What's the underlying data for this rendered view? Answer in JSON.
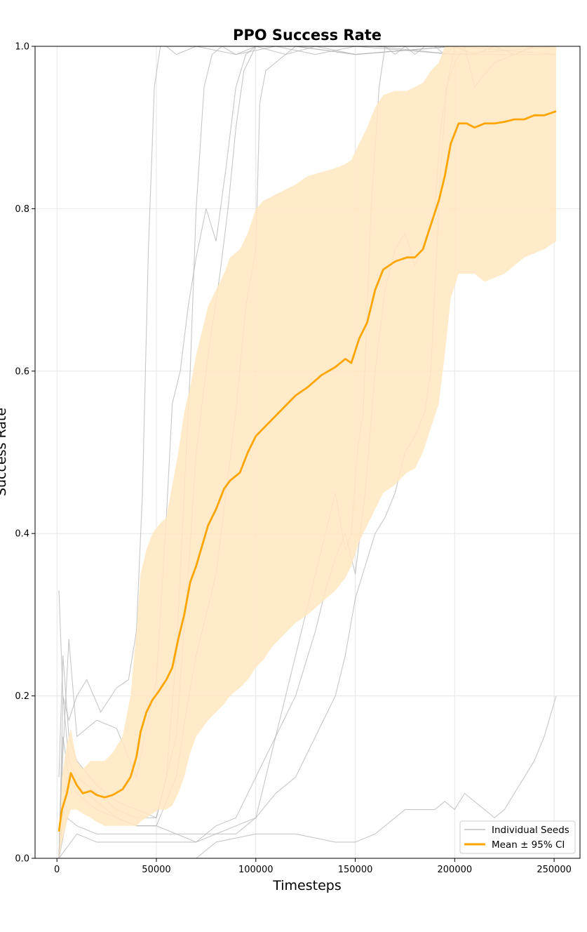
{
  "chart_data": {
    "type": "line",
    "title": "PPO Success Rate",
    "xlabel": "Timesteps",
    "ylabel": "Success Rate",
    "xlim": [
      -11000,
      263000
    ],
    "ylim": [
      0,
      1.0
    ],
    "xticks": [
      0,
      50000,
      100000,
      150000,
      200000,
      250000
    ],
    "yticks": [
      0.0,
      0.2,
      0.4,
      0.6,
      0.8,
      1.0
    ],
    "xtick_labels": [
      "0",
      "50000",
      "100000",
      "150000",
      "200000",
      "250000"
    ],
    "ytick_labels": [
      "0.0",
      "0.2",
      "0.4",
      "0.6",
      "0.8",
      "1.0"
    ],
    "grid": true,
    "legend_position": "lower-right",
    "colors": {
      "mean": "#ffa500",
      "band": "#ffe8bf",
      "seeds": "#b4b4b4"
    },
    "legend": [
      {
        "label": "Individual Seeds",
        "style": "seed"
      },
      {
        "label": "Mean ± 95% CI",
        "style": "mean"
      }
    ],
    "series": [
      {
        "name": "Mean ± 95% CI",
        "role": "mean",
        "x": [
          1000,
          2500,
          5000,
          7000,
          10000,
          13000,
          17000,
          20000,
          24000,
          28000,
          33000,
          37000,
          40000,
          42000,
          45000,
          48000,
          51000,
          55000,
          58000,
          61000,
          64000,
          67000,
          70000,
          73000,
          76000,
          80000,
          84000,
          87000,
          92000,
          96000,
          100000,
          104000,
          108000,
          112000,
          116000,
          120000,
          126000,
          133000,
          140000,
          145000,
          148000,
          152000,
          156000,
          160000,
          164000,
          170000,
          176000,
          180000,
          184000,
          188000,
          192000,
          195000,
          198000,
          202000,
          206000,
          210000,
          215000,
          220000,
          225000,
          230000,
          235000,
          240000,
          245000,
          251000
        ],
        "y": [
          0.033,
          0.06,
          0.08,
          0.105,
          0.09,
          0.08,
          0.083,
          0.078,
          0.075,
          0.078,
          0.085,
          0.1,
          0.125,
          0.155,
          0.18,
          0.195,
          0.205,
          0.22,
          0.235,
          0.27,
          0.3,
          0.34,
          0.36,
          0.385,
          0.41,
          0.43,
          0.455,
          0.465,
          0.475,
          0.5,
          0.52,
          0.53,
          0.54,
          0.55,
          0.56,
          0.57,
          0.58,
          0.595,
          0.605,
          0.615,
          0.61,
          0.64,
          0.66,
          0.7,
          0.725,
          0.735,
          0.74,
          0.74,
          0.75,
          0.78,
          0.81,
          0.84,
          0.88,
          0.905,
          0.905,
          0.9,
          0.905,
          0.905,
          0.907,
          0.91,
          0.91,
          0.915,
          0.915,
          0.92
        ],
        "ci_lower": [
          0.0,
          0.02,
          0.045,
          0.06,
          0.06,
          0.055,
          0.05,
          0.045,
          0.04,
          0.04,
          0.04,
          0.04,
          0.04,
          0.045,
          0.05,
          0.055,
          0.06,
          0.06,
          0.065,
          0.08,
          0.1,
          0.13,
          0.15,
          0.16,
          0.17,
          0.18,
          0.19,
          0.2,
          0.21,
          0.22,
          0.235,
          0.245,
          0.26,
          0.27,
          0.28,
          0.29,
          0.3,
          0.315,
          0.33,
          0.345,
          0.36,
          0.39,
          0.41,
          0.43,
          0.45,
          0.46,
          0.475,
          0.48,
          0.5,
          0.53,
          0.56,
          0.62,
          0.69,
          0.72,
          0.72,
          0.72,
          0.71,
          0.715,
          0.72,
          0.73,
          0.74,
          0.745,
          0.75,
          0.76
        ],
        "ci_upper": [
          0.0,
          0.1,
          0.14,
          0.16,
          0.12,
          0.11,
          0.12,
          0.12,
          0.12,
          0.13,
          0.15,
          0.2,
          0.28,
          0.35,
          0.38,
          0.4,
          0.41,
          0.42,
          0.46,
          0.5,
          0.55,
          0.58,
          0.62,
          0.65,
          0.68,
          0.7,
          0.72,
          0.74,
          0.75,
          0.77,
          0.8,
          0.81,
          0.815,
          0.82,
          0.825,
          0.83,
          0.84,
          0.845,
          0.85,
          0.855,
          0.86,
          0.88,
          0.9,
          0.925,
          0.94,
          0.945,
          0.945,
          0.95,
          0.955,
          0.97,
          0.98,
          1.0,
          1.0,
          1.0,
          1.0,
          1.0,
          1.0,
          1.0,
          1.0,
          1.0,
          1.0,
          1.0,
          1.0,
          1.0
        ]
      },
      {
        "role": "seed",
        "x": [
          1000,
          3000,
          6000,
          10000,
          15000,
          22000,
          30000,
          36000,
          40000,
          43000,
          46000,
          49000,
          52000,
          55000,
          60000,
          70000,
          90000,
          110000,
          130000,
          150000,
          200000,
          251000
        ],
        "y": [
          0.33,
          0.2,
          0.17,
          0.2,
          0.22,
          0.18,
          0.21,
          0.22,
          0.28,
          0.45,
          0.75,
          0.95,
          1.0,
          1.0,
          0.99,
          1.0,
          0.99,
          1.0,
          0.99,
          1.0,
          0.99,
          1.0
        ]
      },
      {
        "role": "seed",
        "x": [
          1000,
          3000,
          6000,
          10000,
          20000,
          30000,
          40000,
          50000,
          55000,
          60000,
          63000,
          67000,
          70000,
          74000,
          78000,
          83000,
          90000,
          100000,
          130000,
          160000,
          200000,
          251000
        ],
        "y": [
          0.1,
          0.25,
          0.15,
          0.12,
          0.09,
          0.07,
          0.06,
          0.05,
          0.1,
          0.25,
          0.4,
          0.6,
          0.8,
          0.95,
          0.99,
          1.0,
          0.99,
          1.0,
          1.0,
          1.0,
          0.99,
          0.99
        ]
      },
      {
        "role": "seed",
        "x": [
          1000,
          3000,
          6000,
          10000,
          20000,
          30000,
          40000,
          50000,
          55000,
          58000,
          62000,
          66000,
          70000,
          75000,
          80000,
          85000,
          90000,
          95000,
          100000,
          120000,
          150000,
          200000,
          251000
        ],
        "y": [
          0.0,
          0.13,
          0.27,
          0.15,
          0.17,
          0.16,
          0.1,
          0.22,
          0.42,
          0.56,
          0.6,
          0.68,
          0.74,
          0.8,
          0.76,
          0.85,
          0.95,
          0.99,
          1.0,
          1.0,
          0.99,
          1.0,
          1.0
        ]
      },
      {
        "role": "seed",
        "x": [
          1000,
          3000,
          6000,
          10000,
          20000,
          30000,
          40000,
          50000,
          60000,
          66000,
          70000,
          76000,
          82000,
          86000,
          90000,
          94000,
          100000,
          115000,
          130000,
          150000,
          200000,
          251000
        ],
        "y": [
          0.0,
          0.2,
          0.12,
          0.1,
          0.08,
          0.06,
          0.05,
          0.05,
          0.15,
          0.35,
          0.5,
          0.62,
          0.72,
          0.8,
          0.9,
          0.97,
          1.0,
          0.99,
          1.0,
          0.99,
          1.0,
          0.99
        ]
      },
      {
        "role": "seed",
        "x": [
          1000,
          3000,
          6000,
          10000,
          20000,
          30000,
          40000,
          50000,
          60000,
          65000,
          70000,
          75000,
          80000,
          85000,
          90000,
          95000,
          100000,
          102000,
          105000,
          110000,
          120000,
          150000,
          200000,
          251000
        ],
        "y": [
          0.0,
          0.15,
          0.1,
          0.08,
          0.06,
          0.05,
          0.04,
          0.04,
          0.1,
          0.18,
          0.25,
          0.3,
          0.35,
          0.45,
          0.55,
          0.68,
          0.75,
          0.93,
          0.97,
          0.98,
          1.0,
          0.99,
          1.0,
          1.0
        ]
      },
      {
        "role": "seed",
        "x": [
          1000,
          5000,
          10000,
          20000,
          30000,
          40000,
          50000,
          60000,
          70000,
          80000,
          90000,
          100000,
          110000,
          120000,
          130000,
          135000,
          140000,
          145000,
          150000,
          155000,
          160000,
          165000,
          170000,
          175000,
          180000,
          185000,
          190000,
          193000,
          196000,
          200000,
          205000,
          210000,
          220000,
          230000,
          240000,
          251000
        ],
        "y": [
          0.0,
          0.1,
          0.09,
          0.07,
          0.05,
          0.04,
          0.04,
          0.03,
          0.02,
          0.04,
          0.05,
          0.1,
          0.15,
          0.2,
          0.28,
          0.33,
          0.37,
          0.4,
          0.35,
          0.45,
          0.6,
          0.7,
          0.75,
          0.77,
          0.73,
          0.76,
          0.8,
          0.9,
          0.95,
          0.98,
          1.0,
          0.95,
          0.98,
          0.99,
          1.0,
          1.0
        ]
      },
      {
        "role": "seed",
        "x": [
          1000,
          5000,
          10000,
          20000,
          30000,
          40000,
          50000,
          60000,
          70000,
          80000,
          90000,
          100000,
          110000,
          120000,
          130000,
          140000,
          145000,
          148000,
          151000,
          154000,
          158000,
          162000,
          165000,
          170000,
          175000,
          180000,
          185000,
          190000,
          195000,
          200000,
          210000,
          220000,
          230000,
          240000,
          251000
        ],
        "y": [
          0.0,
          0.05,
          0.04,
          0.03,
          0.03,
          0.03,
          0.03,
          0.03,
          0.03,
          0.03,
          0.04,
          0.05,
          0.15,
          0.25,
          0.35,
          0.45,
          0.38,
          0.4,
          0.5,
          0.55,
          0.8,
          0.95,
          1.0,
          0.99,
          1.0,
          0.99,
          1.0,
          1.0,
          0.99,
          1.0,
          0.99,
          1.0,
          0.99,
          1.0,
          1.0
        ]
      },
      {
        "role": "seed",
        "x": [
          1000,
          10000,
          20000,
          30000,
          40000,
          50000,
          60000,
          70000,
          80000,
          90000,
          100000,
          110000,
          120000,
          130000,
          140000,
          145000,
          150000,
          155000,
          160000,
          165000,
          170000,
          175000,
          180000,
          185000,
          188000,
          190000,
          193000,
          196000,
          200000,
          210000,
          220000,
          230000,
          240000,
          251000
        ],
        "y": [
          0.0,
          0.03,
          0.02,
          0.02,
          0.02,
          0.02,
          0.02,
          0.02,
          0.03,
          0.03,
          0.05,
          0.08,
          0.1,
          0.15,
          0.2,
          0.25,
          0.32,
          0.36,
          0.4,
          0.42,
          0.45,
          0.5,
          0.52,
          0.55,
          0.6,
          0.7,
          0.85,
          0.95,
          1.0,
          0.99,
          1.0,
          0.99,
          1.0,
          1.0
        ]
      },
      {
        "role": "seed",
        "x": [
          1000,
          10000,
          20000,
          30000,
          40000,
          50000,
          60000,
          70000,
          80000,
          100000,
          120000,
          140000,
          150000,
          160000,
          165000,
          170000,
          175000,
          180000,
          185000,
          190000,
          195000,
          200000,
          205000,
          210000,
          215000,
          220000,
          225000,
          230000,
          235000,
          240000,
          245000,
          251000
        ],
        "y": [
          0.0,
          0.0,
          0.0,
          0.0,
          0.0,
          0.0,
          0.0,
          0.0,
          0.02,
          0.03,
          0.03,
          0.02,
          0.02,
          0.03,
          0.04,
          0.05,
          0.06,
          0.06,
          0.06,
          0.06,
          0.07,
          0.06,
          0.08,
          0.07,
          0.06,
          0.05,
          0.06,
          0.08,
          0.1,
          0.12,
          0.15,
          0.2
        ]
      }
    ]
  }
}
